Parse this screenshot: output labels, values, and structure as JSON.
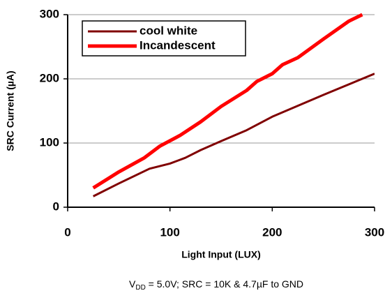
{
  "chart_data": {
    "type": "line",
    "xlabel": "Light Input (LUX)",
    "ylabel": "SRC Current (µA)",
    "note": {
      "v": "V",
      "sub": "DD",
      "rest": " = 5.0V; SRC = 10K & 4.7µF to GND"
    },
    "xlim": [
      0,
      300
    ],
    "xticks": [
      0,
      100,
      200,
      300
    ],
    "ylim": [
      0,
      300
    ],
    "yticks": [
      0,
      100,
      200,
      300
    ],
    "grid": true,
    "legend": "upper left",
    "series": [
      {
        "name": "cool white",
        "color": "#800000",
        "x": [
          25,
          50,
          80,
          100,
          115,
          130,
          150,
          175,
          200,
          250,
          300
        ],
        "values": [
          17,
          37,
          60,
          68,
          77,
          89,
          103,
          120,
          141,
          175,
          208
        ]
      },
      {
        "name": "Incandescent",
        "color": "#ff0000",
        "x": [
          25,
          50,
          75,
          90,
          110,
          130,
          150,
          175,
          185,
          200,
          210,
          225,
          250,
          275,
          288
        ],
        "values": [
          30,
          55,
          77,
          95,
          112,
          133,
          157,
          182,
          196,
          208,
          222,
          233,
          262,
          290,
          300
        ]
      }
    ]
  }
}
